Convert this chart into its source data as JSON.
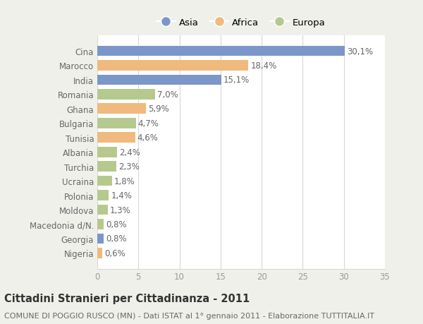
{
  "categories": [
    "Cina",
    "Marocco",
    "India",
    "Romania",
    "Ghana",
    "Bulgaria",
    "Tunisia",
    "Albania",
    "Turchia",
    "Ucraina",
    "Polonia",
    "Moldova",
    "Macedonia d/N.",
    "Georgia",
    "Nigeria"
  ],
  "values": [
    30.1,
    18.4,
    15.1,
    7.0,
    5.9,
    4.7,
    4.6,
    2.4,
    2.3,
    1.8,
    1.4,
    1.3,
    0.8,
    0.8,
    0.6
  ],
  "labels": [
    "30,1%",
    "18,4%",
    "15,1%",
    "7,0%",
    "5,9%",
    "4,7%",
    "4,6%",
    "2,4%",
    "2,3%",
    "1,8%",
    "1,4%",
    "1,3%",
    "0,8%",
    "0,8%",
    "0,6%"
  ],
  "colors": [
    "#7b96c8",
    "#f0b97d",
    "#7b96c8",
    "#b5c98e",
    "#f0b97d",
    "#b5c98e",
    "#f0b97d",
    "#b5c98e",
    "#b5c98e",
    "#b5c98e",
    "#b5c98e",
    "#b5c98e",
    "#b5c98e",
    "#7b96c8",
    "#f0b97d"
  ],
  "legend_labels": [
    "Asia",
    "Africa",
    "Europa"
  ],
  "legend_colors": [
    "#7b96c8",
    "#f0b97d",
    "#b5c98e"
  ],
  "title": "Cittadini Stranieri per Cittadinanza - 2011",
  "subtitle": "COMUNE DI POGGIO RUSCO (MN) - Dati ISTAT al 1° gennaio 2011 - Elaborazione TUTTITALIA.IT",
  "xlim": [
    0,
    35
  ],
  "xticks": [
    0,
    5,
    10,
    15,
    20,
    25,
    30,
    35
  ],
  "background_color": "#f0f0eb",
  "bar_background": "#ffffff",
  "grid_color": "#d8d8d8",
  "label_fontsize": 8.5,
  "title_fontsize": 10.5,
  "subtitle_fontsize": 8
}
